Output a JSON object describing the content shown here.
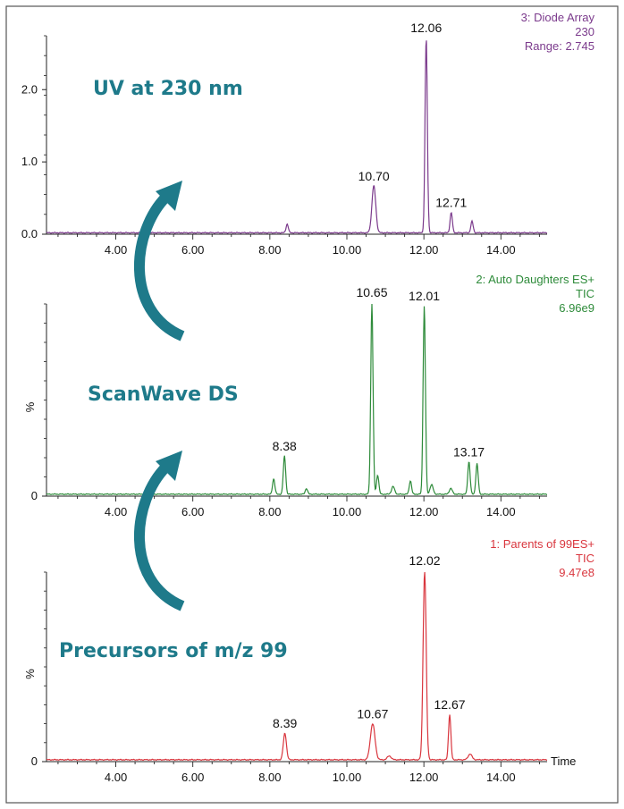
{
  "chart_data": [
    {
      "type": "line",
      "panel": "top",
      "color": "#7b3a8c",
      "info_lines": [
        "3: Diode Array",
        "230",
        "Range: 2.745"
      ],
      "ylabel": "",
      "yticks": [
        "0.0",
        "1.0",
        "2.0"
      ],
      "ytick_values": [
        0,
        1,
        2
      ],
      "ylim": [
        0,
        2.745
      ],
      "xlim": [
        2.2,
        15.2
      ],
      "xticks": [
        "4.00",
        "6.00",
        "8.00",
        "10.00",
        "12.00",
        "14.00"
      ],
      "xtick_values": [
        4,
        6,
        8,
        10,
        12,
        14
      ],
      "overlay_label": "UV at 230 nm",
      "baseline": 0.02,
      "peaks": [
        {
          "x": 8.45,
          "y": 0.12,
          "w": 0.03
        },
        {
          "x": 10.7,
          "y": 0.65,
          "w": 0.05,
          "label": "10.70"
        },
        {
          "x": 12.06,
          "y": 2.7,
          "w": 0.03,
          "label": "12.06"
        },
        {
          "x": 12.71,
          "y": 0.28,
          "w": 0.03,
          "label": "12.71"
        },
        {
          "x": 13.25,
          "y": 0.16,
          "w": 0.03
        }
      ]
    },
    {
      "type": "line",
      "panel": "middle",
      "color": "#2e8b3a",
      "info_lines": [
        "2: Auto Daughters ES+",
        "TIC",
        "6.96e9"
      ],
      "ylabel": "%",
      "yticks": [
        "0"
      ],
      "ytick_values": [
        0
      ],
      "ylim": [
        0,
        100
      ],
      "xlim": [
        2.2,
        15.2
      ],
      "xticks": [
        "4.00",
        "6.00",
        "8.00",
        "10.00",
        "12.00",
        "14.00"
      ],
      "xtick_values": [
        4,
        6,
        8,
        10,
        12,
        14
      ],
      "overlay_label": "ScanWave DS",
      "baseline": 1.0,
      "peaks": [
        {
          "x": 8.1,
          "y": 8,
          "w": 0.03
        },
        {
          "x": 8.38,
          "y": 20,
          "w": 0.03,
          "label": "8.38"
        },
        {
          "x": 8.95,
          "y": 3,
          "w": 0.03
        },
        {
          "x": 10.65,
          "y": 100,
          "w": 0.03,
          "label": "10.65"
        },
        {
          "x": 10.8,
          "y": 10,
          "w": 0.03
        },
        {
          "x": 11.2,
          "y": 4,
          "w": 0.04
        },
        {
          "x": 11.65,
          "y": 7,
          "w": 0.03
        },
        {
          "x": 12.01,
          "y": 98,
          "w": 0.03,
          "label": "12.01"
        },
        {
          "x": 12.2,
          "y": 5,
          "w": 0.04
        },
        {
          "x": 12.7,
          "y": 3,
          "w": 0.04
        },
        {
          "x": 13.17,
          "y": 17,
          "w": 0.03,
          "label": "13.17"
        },
        {
          "x": 13.38,
          "y": 16,
          "w": 0.03
        }
      ]
    },
    {
      "type": "line",
      "panel": "bottom",
      "color": "#d9363e",
      "info_lines": [
        "1: Parents of 99ES+",
        "TIC",
        "9.47e8"
      ],
      "ylabel": "%",
      "yticks": [
        "0"
      ],
      "ytick_values": [
        0
      ],
      "ylim": [
        0,
        100
      ],
      "xlim": [
        2.2,
        15.2
      ],
      "xticks": [
        "4.00",
        "6.00",
        "8.00",
        "10.00",
        "12.00",
        "14.00"
      ],
      "xtick_values": [
        4,
        6,
        8,
        10,
        12,
        14
      ],
      "xlabel": "Time",
      "overlay_label": "Precursors of m/z 99",
      "baseline": 1.0,
      "peaks": [
        {
          "x": 8.39,
          "y": 14,
          "w": 0.04,
          "label": "8.39"
        },
        {
          "x": 10.67,
          "y": 19,
          "w": 0.06,
          "label": "10.67"
        },
        {
          "x": 11.1,
          "y": 2,
          "w": 0.05
        },
        {
          "x": 12.02,
          "y": 100,
          "w": 0.04,
          "label": "12.02"
        },
        {
          "x": 12.67,
          "y": 24,
          "w": 0.03,
          "label": "12.67"
        },
        {
          "x": 13.2,
          "y": 3,
          "w": 0.05
        }
      ]
    }
  ],
  "colors": {
    "accent": "#1e7a8a",
    "border": "#555555"
  }
}
